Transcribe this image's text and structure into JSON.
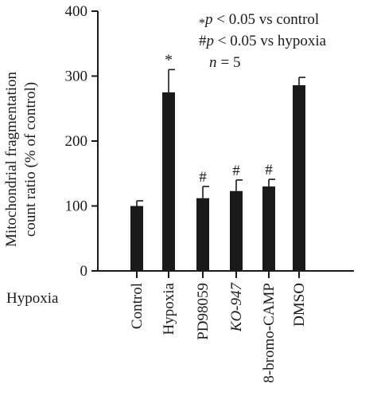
{
  "chart_data": {
    "type": "bar",
    "ylabel_line1": "Mitochondrial fragmentation",
    "ylabel_line2": "count ratio (% of control)",
    "xlabel": "Hypoxia",
    "categories": [
      "Control",
      "Hypoxia",
      "PD98059",
      "KO-947",
      "8-bromo-CAMP",
      "DMSO"
    ],
    "values": [
      100,
      275,
      112,
      123,
      130,
      286
    ],
    "errors": [
      8,
      35,
      18,
      17,
      11,
      12
    ],
    "markers": [
      "",
      "*",
      "#",
      "#",
      "#",
      ""
    ],
    "ylim": [
      0,
      400
    ],
    "yticks": [
      0,
      100,
      200,
      300,
      400
    ],
    "grid": false,
    "bar_color": "#1a1a1a",
    "annotations": {
      "line1": "p < 0.05 vs control",
      "line1_symbol": "*",
      "line2": "p < 0.05 vs hypoxia",
      "line2_symbol": "#",
      "line3_var": "n",
      "line3_value": "= 5"
    }
  }
}
